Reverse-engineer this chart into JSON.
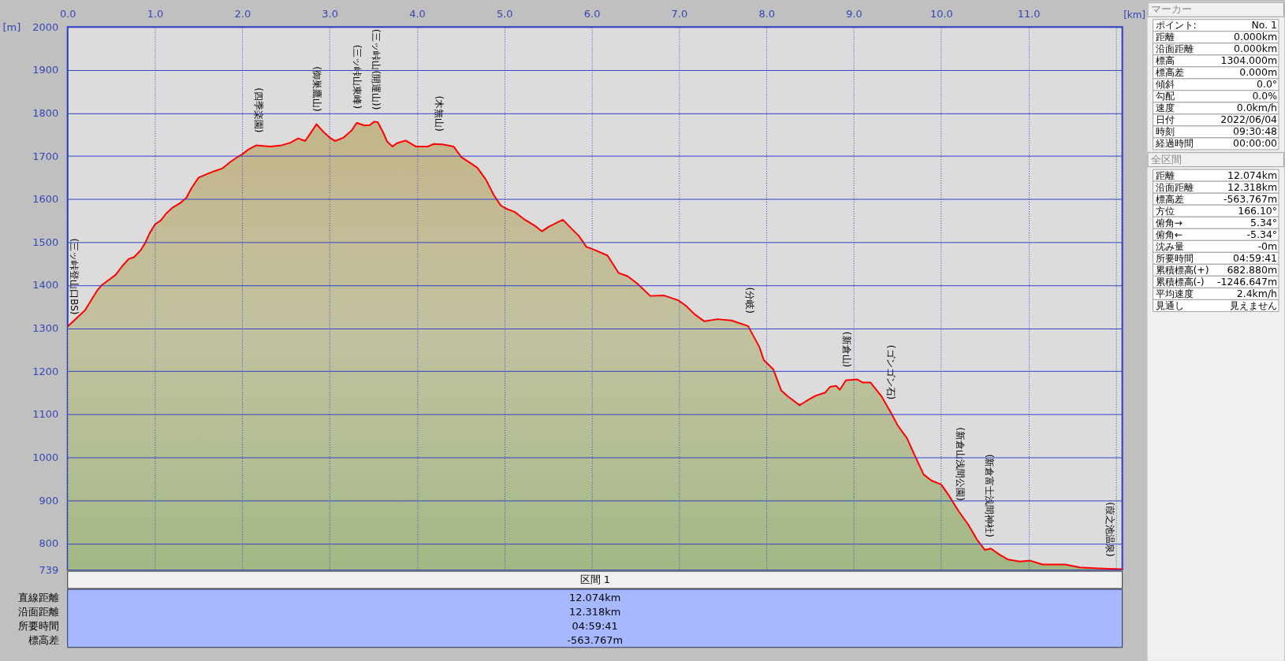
{
  "chart_data": [
    {
      "type": "area",
      "xlabel": "[km]",
      "ylabel": "[m]",
      "xlim": [
        0,
        12.074
      ],
      "ylim": [
        739,
        2000
      ],
      "xticks": [
        {
          "value": 0,
          "label": "0.0"
        },
        {
          "value": 1,
          "label": "1.0"
        },
        {
          "value": 2,
          "label": "2.0"
        },
        {
          "value": 3,
          "label": "3.0"
        },
        {
          "value": 4,
          "label": "4.0"
        },
        {
          "value": 5,
          "label": "5.0"
        },
        {
          "value": 6,
          "label": "6.0"
        },
        {
          "value": 7,
          "label": "7.0"
        },
        {
          "value": 8,
          "label": "8.0"
        },
        {
          "value": 9,
          "label": "9.0"
        },
        {
          "value": 10,
          "label": "10.0"
        },
        {
          "value": 11,
          "label": "11.0"
        },
        {
          "value": 12,
          "label": null
        }
      ],
      "yticks": [
        739,
        800,
        900,
        1000,
        1100,
        1200,
        1300,
        1400,
        1500,
        1600,
        1700,
        1800,
        1900,
        2000
      ],
      "grid": true,
      "color": "#ff0000",
      "x": [
        0,
        0.2,
        0.34,
        0.39,
        0.55,
        0.62,
        0.7,
        0.76,
        0.84,
        0.89,
        0.94,
        1.0,
        1.07,
        1.13,
        1.2,
        1.29,
        1.36,
        1.42,
        1.5,
        1.58,
        1.68,
        1.77,
        1.86,
        1.94,
        2.0,
        2.06,
        2.16,
        2.32,
        2.45,
        2.55,
        2.64,
        2.72,
        2.8,
        2.85,
        2.93,
        3.0,
        3.06,
        3.16,
        3.25,
        3.31,
        3.4,
        3.46,
        3.51,
        3.55,
        3.61,
        3.66,
        3.72,
        3.77,
        3.87,
        3.99,
        4.12,
        4.19,
        4.29,
        4.42,
        4.51,
        4.61,
        4.69,
        4.79,
        4.88,
        4.96,
        5.03,
        5.12,
        5.22,
        5.35,
        5.43,
        5.51,
        5.67,
        5.77,
        5.85,
        5.94,
        6.02,
        6.18,
        6.31,
        6.41,
        6.52,
        6.67,
        6.83,
        6.99,
        7.08,
        7.18,
        7.29,
        7.44,
        7.6,
        7.79,
        7.92,
        7.97,
        8.08,
        8.17,
        8.25,
        8.38,
        8.45,
        8.56,
        8.67,
        8.73,
        8.8,
        8.84,
        8.91,
        9.04,
        9.1,
        9.19,
        9.32,
        9.43,
        9.5,
        9.61,
        9.69,
        9.8,
        9.89,
        10.0,
        10.09,
        10.2,
        10.31,
        10.41,
        10.5,
        10.57,
        10.66,
        10.76,
        10.9,
        11.02,
        11.16,
        11.42,
        11.59,
        11.81,
        12.074
      ],
      "values": [
        1304,
        1342,
        1388,
        1400,
        1424,
        1443,
        1461,
        1465,
        1482,
        1499,
        1521,
        1541,
        1551,
        1567,
        1580,
        1591,
        1603,
        1626,
        1650,
        1657,
        1665,
        1671,
        1686,
        1697,
        1704,
        1714,
        1725,
        1722,
        1725,
        1731,
        1741,
        1735,
        1759,
        1774,
        1756,
        1743,
        1735,
        1743,
        1759,
        1777,
        1771,
        1772,
        1780,
        1779,
        1756,
        1733,
        1722,
        1730,
        1736,
        1722,
        1722,
        1728,
        1727,
        1722,
        1697,
        1684,
        1673,
        1645,
        1609,
        1585,
        1577,
        1570,
        1554,
        1538,
        1525,
        1536,
        1552,
        1531,
        1515,
        1489,
        1483,
        1469,
        1428,
        1421,
        1404,
        1375,
        1376,
        1365,
        1352,
        1332,
        1316,
        1321,
        1318,
        1305,
        1256,
        1226,
        1204,
        1155,
        1141,
        1121,
        1130,
        1143,
        1150,
        1164,
        1166,
        1157,
        1179,
        1181,
        1174,
        1174,
        1141,
        1102,
        1075,
        1044,
        1008,
        960,
        946,
        937,
        911,
        875,
        844,
        809,
        785,
        788,
        775,
        763,
        758,
        760,
        751,
        751,
        744,
        742,
        740
      ],
      "annotations": [
        {
          "text": "(三ッ峠登山口BS)",
          "x": 0,
          "y": 1304
        },
        {
          "text": "(四季楽園)",
          "x": 2.19,
          "y": 1725
        },
        {
          "text": "(御巣鷹山)",
          "x": 2.85,
          "y": 1774
        },
        {
          "text": "(三ッ峠山東峰)",
          "x": 3.31,
          "y": 1777
        },
        {
          "text": "(三ッ峠山(開運山))",
          "x": 3.53,
          "y": 1780
        },
        {
          "text": "(木無山)",
          "x": 4.25,
          "y": 1728
        },
        {
          "text": "(分岐)",
          "x": 7.81,
          "y": 1305
        },
        {
          "text": "(新倉山)",
          "x": 8.92,
          "y": 1180
        },
        {
          "text": "(ゴンゴン石)",
          "x": 9.42,
          "y": 1105
        },
        {
          "text": "(新倉山浅間公園)",
          "x": 10.22,
          "y": 870
        },
        {
          "text": "(新倉富士浅間神社)",
          "x": 10.55,
          "y": 787
        },
        {
          "text": "(葭之池温泉)",
          "x": 12.07,
          "y": 740
        }
      ]
    },
    {
      "type": "other",
      "title": "区間 1",
      "annotations": [
        "直線距離",
        "12.074km",
        "沿面距離",
        "12.318km",
        "所要時間",
        "04:59:41",
        "標高差",
        "-563.767m"
      ]
    },
    {
      "type": "other",
      "title": "マーカー",
      "annotations": [
        "ポイント:",
        "No. 1",
        "距離",
        "0.000km",
        "沿面距離",
        "0.000km",
        "標高",
        "1304.000m",
        "標高差",
        "0.000m",
        "傾斜",
        "0.0°",
        "勾配",
        "0.0%",
        "速度",
        "0.0km/h",
        "日付",
        "2022/06/04",
        "時刻",
        "09:30:48",
        "経過時間",
        "00:00:00"
      ]
    },
    {
      "type": "other",
      "title": "全区間",
      "annotations": [
        "距離",
        "12.074km",
        "沿面距離",
        "12.318km",
        "標高差",
        "-563.767m",
        "方位",
        "166.10°",
        "俯角→",
        "5.34°",
        "俯角←",
        "-5.34°",
        "沈み量",
        "-0m",
        "所要時間",
        "04:59:41",
        "累積標高(+)",
        "682.880m",
        "累積標高(-)",
        "-1246.647m",
        "平均速度",
        "2.4km/h",
        "見通し",
        "見えません"
      ]
    }
  ]
}
